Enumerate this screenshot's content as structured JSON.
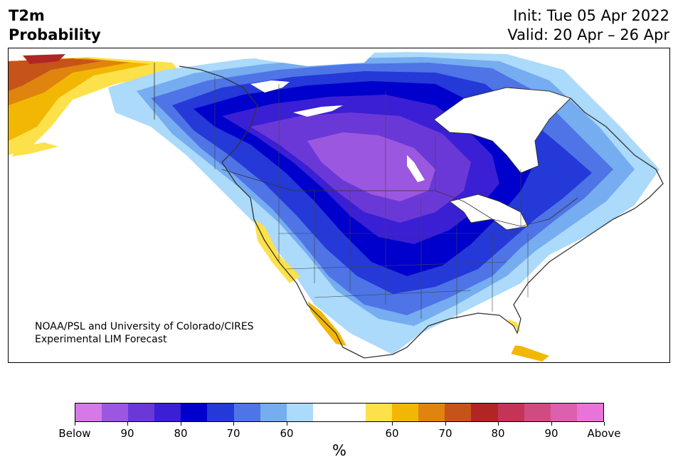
{
  "header": {
    "title_line1": "T2m",
    "title_line2": "Probability",
    "init": "Init: Tue 05 Apr 2022",
    "valid": "Valid: 20 Apr – 26 Apr"
  },
  "credit": {
    "line1": "NOAA/PSL and University of Colorado/CIRES",
    "line2": "Experimental LIM Forecast"
  },
  "colorbar": {
    "colors": [
      "#d678e8",
      "#9c57e0",
      "#6b38d8",
      "#3a1fd4",
      "#0000cc",
      "#2439d8",
      "#4e74e6",
      "#76acf0",
      "#abdafb",
      "#ffffff",
      "#ffffff",
      "#fde14a",
      "#f2b705",
      "#df840f",
      "#c65317",
      "#b12524",
      "#c43456",
      "#d04c80",
      "#dc60ae",
      "#e874d8"
    ],
    "labels": [
      "Below",
      "90",
      "80",
      "70",
      "60",
      "60",
      "70",
      "80",
      "90",
      "Above"
    ],
    "unit": "%"
  },
  "colors": {
    "below": "#d678e8",
    "above": "#e874d8",
    "coast": "#333333"
  }
}
